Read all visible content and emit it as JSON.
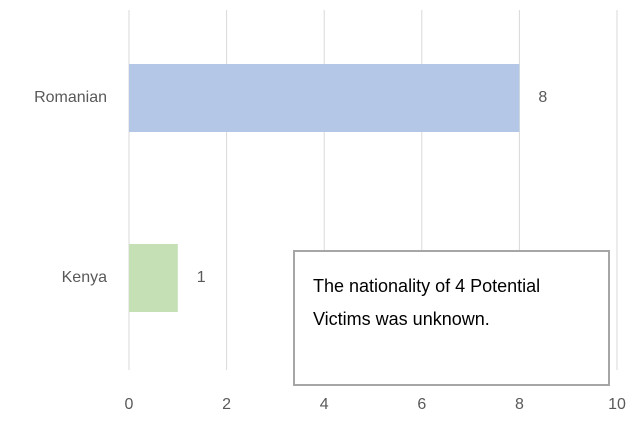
{
  "chart_data": {
    "type": "barh",
    "categories": [
      "Romanian",
      "Kenya"
    ],
    "values": [
      8,
      1
    ],
    "colors": [
      "#b4c7e7",
      "#c5e0b4"
    ],
    "xlim": [
      0,
      10
    ],
    "xticks": [
      0,
      2,
      4,
      6,
      8,
      10
    ],
    "grid": true,
    "annotation": "The nationality of 4 Potential Victims was unknown."
  }
}
